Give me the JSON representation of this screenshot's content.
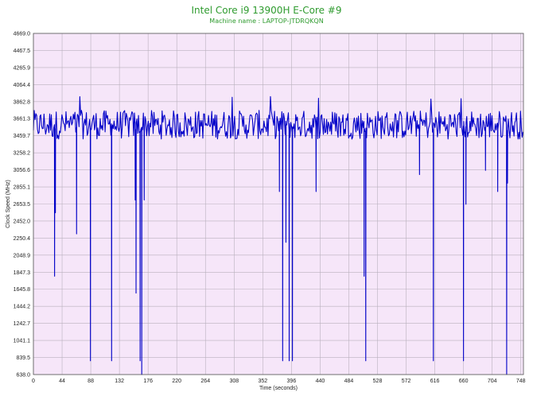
{
  "chart_data": {
    "type": "line",
    "title": "Intel Core i9 13900H E-Core #9",
    "subtitle": "Machine name : LAPTOP-JTDRQKQN",
    "xlabel": "Time (seconds)",
    "ylabel": "Clock Speed (MHz)",
    "xlim": [
      0,
      752
    ],
    "ylim": [
      638.0,
      4669.0
    ],
    "x_ticks": [
      "0",
      "44",
      "88",
      "132",
      "176",
      "220",
      "264",
      "308",
      "352",
      "396",
      "440",
      "484",
      "528",
      "572",
      "616",
      "660",
      "704",
      "748"
    ],
    "y_ticks": [
      "4669.0",
      "4467.5",
      "4265.9",
      "4064.4",
      "3862.8",
      "3661.3",
      "3459.7",
      "3258.2",
      "3056.6",
      "2855.1",
      "2653.5",
      "2452.0",
      "2250.4",
      "2048.9",
      "1847.3",
      "1645.8",
      "1444.2",
      "1242.7",
      "1041.1",
      "839.5",
      "638.0"
    ],
    "grid": true,
    "background_color": "#f6e6f9",
    "line_color": "#0000c8",
    "series": [
      {
        "baseline_mhz": 3560,
        "typical_low_mhz": 3420,
        "typical_high_mhz": 3760,
        "peak_mhz": 3960,
        "dips": [
          {
            "x": 32,
            "y": 1800
          },
          {
            "x": 33,
            "y": 800
          },
          {
            "x": 34,
            "y": 2550
          },
          {
            "x": 66,
            "y": 2300
          },
          {
            "x": 88,
            "y": 800
          },
          {
            "x": 120,
            "y": 800
          },
          {
            "x": 156,
            "y": 2700
          },
          {
            "x": 158,
            "y": 1600
          },
          {
            "x": 164,
            "y": 800
          },
          {
            "x": 166,
            "y": 638
          },
          {
            "x": 170,
            "y": 2700
          },
          {
            "x": 378,
            "y": 2800
          },
          {
            "x": 382,
            "y": 800
          },
          {
            "x": 388,
            "y": 2200
          },
          {
            "x": 392,
            "y": 800
          },
          {
            "x": 398,
            "y": 800
          },
          {
            "x": 434,
            "y": 2800
          },
          {
            "x": 507,
            "y": 1800
          },
          {
            "x": 510,
            "y": 800
          },
          {
            "x": 592,
            "y": 3000
          },
          {
            "x": 614,
            "y": 800
          },
          {
            "x": 660,
            "y": 800
          },
          {
            "x": 664,
            "y": 2650
          },
          {
            "x": 694,
            "y": 3050
          },
          {
            "x": 712,
            "y": 2800
          },
          {
            "x": 726,
            "y": 638
          },
          {
            "x": 728,
            "y": 2900
          }
        ]
      }
    ]
  }
}
